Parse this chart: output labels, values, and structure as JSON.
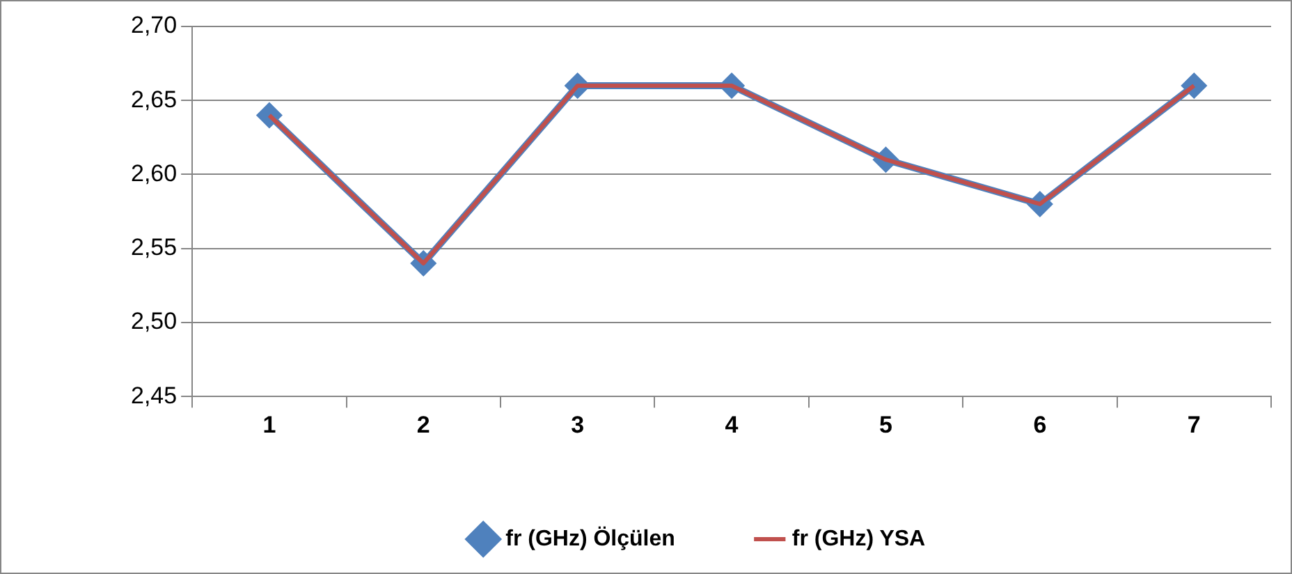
{
  "chart_data": {
    "type": "line",
    "categories": [
      "1",
      "2",
      "3",
      "4",
      "5",
      "6",
      "7"
    ],
    "series": [
      {
        "name": "fr (GHz) Ölçülen",
        "color": "#4f81bd",
        "marker": "diamond",
        "values": [
          2.64,
          2.54,
          2.66,
          2.66,
          2.61,
          2.58,
          2.66
        ]
      },
      {
        "name": "fr (GHz) YSA",
        "color": "#c0504d",
        "marker": "none",
        "values": [
          2.64,
          2.54,
          2.66,
          2.66,
          2.61,
          2.58,
          2.66
        ]
      }
    ],
    "ylim": [
      2.45,
      2.7
    ],
    "yticks": [
      {
        "value": 2.45,
        "label": "2,45"
      },
      {
        "value": 2.5,
        "label": "2,50"
      },
      {
        "value": 2.55,
        "label": "2,55"
      },
      {
        "value": 2.6,
        "label": "2,60"
      },
      {
        "value": 2.65,
        "label": "2,65"
      },
      {
        "value": 2.7,
        "label": "2,70"
      }
    ],
    "grid": "y",
    "legend": "bottom",
    "line_style": "solid"
  }
}
